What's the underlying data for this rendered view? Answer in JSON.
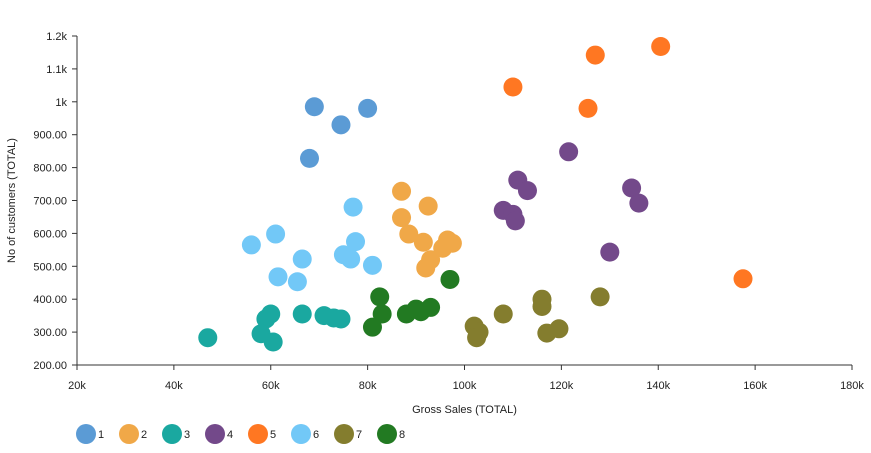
{
  "chart_data": {
    "type": "scatter",
    "xlabel": "Gross Sales (TOTAL)",
    "ylabel": "No of customers (TOTAL)",
    "xlim": [
      20000,
      180000
    ],
    "ylim": [
      200,
      1200
    ],
    "x_ticks": [
      {
        "value": 20000,
        "label": "20k"
      },
      {
        "value": 40000,
        "label": "40k"
      },
      {
        "value": 60000,
        "label": "60k"
      },
      {
        "value": 80000,
        "label": "80k"
      },
      {
        "value": 100000,
        "label": "100k"
      },
      {
        "value": 120000,
        "label": "120k"
      },
      {
        "value": 140000,
        "label": "140k"
      },
      {
        "value": 160000,
        "label": "160k"
      },
      {
        "value": 180000,
        "label": "180k"
      }
    ],
    "y_ticks": [
      {
        "value": 200,
        "label": "200.00"
      },
      {
        "value": 300,
        "label": "300.00"
      },
      {
        "value": 400,
        "label": "400.00"
      },
      {
        "value": 500,
        "label": "500.00"
      },
      {
        "value": 600,
        "label": "600.00"
      },
      {
        "value": 700,
        "label": "700.00"
      },
      {
        "value": 800,
        "label": "800.00"
      },
      {
        "value": 900,
        "label": "900.00"
      },
      {
        "value": 1000,
        "label": "1k"
      },
      {
        "value": 1100,
        "label": "1.1k"
      },
      {
        "value": 1200,
        "label": "1.2k"
      }
    ],
    "grid": false,
    "legend_position": "bottom-left",
    "series": [
      {
        "name": "1",
        "color": "#5b9bd5",
        "points": [
          [
            69000,
            985
          ],
          [
            80000,
            980
          ],
          [
            74500,
            930
          ],
          [
            68000,
            828
          ]
        ]
      },
      {
        "name": "2",
        "color": "#f0a848",
        "points": [
          [
            87000,
            728
          ],
          [
            92500,
            683
          ],
          [
            87000,
            648
          ],
          [
            88500,
            598
          ],
          [
            91500,
            573
          ],
          [
            96500,
            580
          ],
          [
            97500,
            570
          ],
          [
            95500,
            555
          ],
          [
            93000,
            520
          ],
          [
            92000,
            495
          ]
        ]
      },
      {
        "name": "3",
        "color": "#1aa8a0",
        "points": [
          [
            47000,
            283
          ],
          [
            60000,
            355
          ],
          [
            59000,
            340
          ],
          [
            58000,
            295
          ],
          [
            60500,
            270
          ],
          [
            66500,
            355
          ],
          [
            71000,
            350
          ],
          [
            73000,
            343
          ],
          [
            74500,
            340
          ]
        ]
      },
      {
        "name": "4",
        "color": "#73498a",
        "points": [
          [
            121500,
            848
          ],
          [
            111000,
            762
          ],
          [
            113000,
            730
          ],
          [
            134500,
            738
          ],
          [
            136000,
            692
          ],
          [
            108000,
            670
          ],
          [
            110000,
            658
          ],
          [
            110500,
            638
          ],
          [
            130000,
            543
          ]
        ]
      },
      {
        "name": "5",
        "color": "#ff7722",
        "points": [
          [
            140500,
            1168
          ],
          [
            127000,
            1142
          ],
          [
            110000,
            1045
          ],
          [
            125500,
            980
          ],
          [
            157500,
            462
          ]
        ]
      },
      {
        "name": "6",
        "color": "#72c8f7",
        "points": [
          [
            77000,
            680
          ],
          [
            61000,
            598
          ],
          [
            56000,
            565
          ],
          [
            77500,
            575
          ],
          [
            75000,
            535
          ],
          [
            76500,
            522
          ],
          [
            66500,
            522
          ],
          [
            81000,
            503
          ],
          [
            61500,
            468
          ],
          [
            65500,
            453
          ]
        ]
      },
      {
        "name": "7",
        "color": "#847d2e",
        "points": [
          [
            128000,
            407
          ],
          [
            116000,
            400
          ],
          [
            116000,
            378
          ],
          [
            102000,
            318
          ],
          [
            108000,
            355
          ],
          [
            103000,
            300
          ],
          [
            102500,
            283
          ],
          [
            117000,
            297
          ],
          [
            119500,
            310
          ]
        ]
      },
      {
        "name": "8",
        "color": "#227a22",
        "points": [
          [
            97000,
            460
          ],
          [
            82500,
            407
          ],
          [
            83000,
            355
          ],
          [
            81000,
            315
          ],
          [
            88000,
            355
          ],
          [
            90000,
            370
          ],
          [
            91000,
            362
          ],
          [
            93000,
            375
          ]
        ]
      }
    ]
  }
}
